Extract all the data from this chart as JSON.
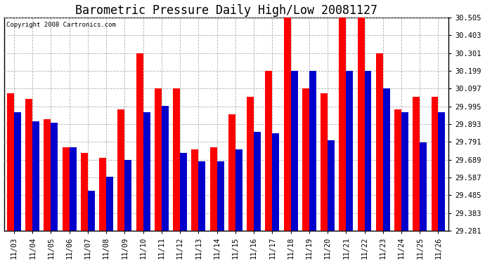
{
  "title": "Barometric Pressure Daily High/Low 20081127",
  "copyright": "Copyright 2008 Cartronics.com",
  "dates": [
    "11/03",
    "11/04",
    "11/05",
    "11/06",
    "11/07",
    "11/08",
    "11/09",
    "11/10",
    "11/11",
    "11/12",
    "11/13",
    "11/14",
    "11/15",
    "11/16",
    "11/17",
    "11/18",
    "11/19",
    "11/20",
    "11/21",
    "11/22",
    "11/23",
    "11/24",
    "11/25",
    "11/26"
  ],
  "highs": [
    30.07,
    30.04,
    29.92,
    29.76,
    29.73,
    29.7,
    29.98,
    30.3,
    30.1,
    30.1,
    29.75,
    29.76,
    29.95,
    30.05,
    30.2,
    30.51,
    30.1,
    30.07,
    30.51,
    30.51,
    30.3,
    29.98,
    30.05,
    30.05
  ],
  "lows": [
    29.96,
    29.91,
    29.9,
    29.76,
    29.51,
    29.59,
    29.69,
    29.96,
    30.0,
    29.73,
    29.68,
    29.68,
    29.75,
    29.85,
    29.84,
    30.2,
    30.2,
    29.8,
    30.2,
    30.2,
    30.1,
    29.96,
    29.79,
    29.96
  ],
  "high_color": "#ff0000",
  "low_color": "#0000cc",
  "bg_color": "#ffffff",
  "plot_bg": "#ffffff",
  "grid_color": "#b0b0b0",
  "ymin": 29.281,
  "ymax": 30.505,
  "yticks": [
    29.281,
    29.383,
    29.485,
    29.587,
    29.689,
    29.791,
    29.893,
    29.995,
    30.097,
    30.199,
    30.301,
    30.403,
    30.505
  ],
  "title_fontsize": 12,
  "bar_width": 0.38
}
